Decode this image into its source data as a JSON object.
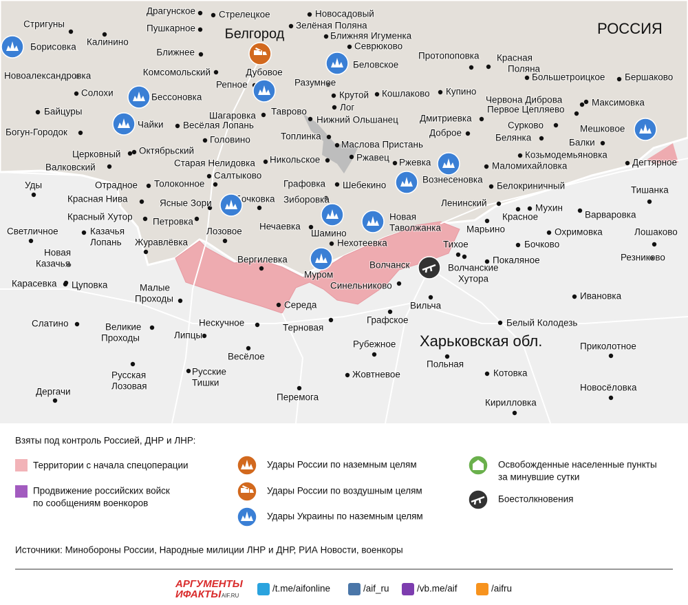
{
  "map": {
    "country": "РОССИЯ",
    "city": "Белгород",
    "region": "Харьковская обл.",
    "places": [
      "Драгунское",
      "Стрелецкое",
      "Новосадовый",
      "Зелёная Поляна",
      "Пушкарное",
      "Ближняя Игуменка",
      "Стригуны",
      "Борисовка",
      "Калинино",
      "Севрюково",
      "Ближнее",
      "Новоалександровка",
      "Комсомольский",
      "Дубовое",
      "Протопоповка",
      [
        "Красная",
        "Поляна"
      ],
      "Большетроицкое",
      "Бершаково",
      "Беловское",
      "Солохи",
      "Бессоновка",
      "Репное",
      "Разумное",
      "Крутой",
      "Кошлаково",
      "Купино",
      "Червона Диброва",
      "Первое Цепляево",
      "Максимовка",
      "Байцуры",
      "Шагаровка",
      "Таврово",
      "Лог",
      "Нижний Ольшанец",
      "Дмитриевка",
      "Чайки",
      "Весёлая Лопань",
      "Сурково",
      "Мешковое",
      "Богун-Городок",
      "Доброе",
      "Головино",
      "Топлинка",
      "Белянка",
      "Балки",
      "Маслова Пристань",
      "Церковный",
      "Октябрьский",
      "Козьмодемьяновка",
      "Дегтярное",
      "Ржавец",
      "Старая Нелидовка",
      "Никольское",
      "Ржевка",
      "Валковский",
      "Маломихайловка",
      "Салтыково",
      "Вознесеновка",
      "Уды",
      "Отрадное",
      "Толоконное",
      "Графовка",
      "Шебекино",
      "Белокриничный",
      "Тишанка",
      "Красная Нива",
      "Ясные Зори",
      "Бочковка",
      "Зиборовка",
      "Ленинский",
      "Мухин",
      "Варваровка",
      "Красный Хутор",
      "Петровка",
      "Нечаевка",
      [
        "Новая",
        "Таволжанка"
      ],
      "Шамино",
      "Марьино",
      "Охримовка",
      "Лошаково",
      "Красное",
      "Светличное",
      [
        "Казачья",
        "Лопань"
      ],
      "Журавлёвка",
      "Лозовое",
      "Нехотеевка",
      "Тихое",
      "Бочково",
      [
        "Новая",
        "Казачья"
      ],
      "Вергилевка",
      "Волчанск",
      [
        "Волчанские",
        "Хутора"
      ],
      "Покаляное",
      "Резниково",
      "Муром",
      "Карасевка",
      "Цуповка",
      "Синельниково",
      [
        "Малые",
        "Проходы"
      ],
      "Середа",
      "Вильча",
      "Ивановка",
      "Графское",
      "Слатино",
      [
        "Великие",
        "Проходы"
      ],
      "Нескучное",
      "Терновая",
      "Белый Колодезь",
      "Липцы",
      "Рубежное",
      "Приколотное",
      "Весёлое",
      "Польная",
      [
        "Русские",
        "Тишки"
      ],
      "Жовтневое",
      "Котовка",
      [
        "Русская",
        "Лозовая"
      ],
      "Новосёловка",
      "Дергачи",
      "Перемога",
      "Кирилловка"
    ]
  },
  "legend": {
    "heading": "Взяты под контроль Россией, ДНР и ЛНР:",
    "items": [
      [
        "Территории с начала спецоперации"
      ],
      [
        "Продвижение российских войск",
        "по сообщениям военкоров"
      ],
      [
        "Удары России по наземным целям"
      ],
      [
        "Удары России по воздушным целям"
      ],
      [
        "Удары Украины по наземным целям"
      ],
      [
        "Освобожденные населенные пункты",
        "за минувшие сутки"
      ],
      [
        "Боестолкновения"
      ]
    ]
  },
  "sources": "Источники: Минобороны России, Народные милиции ЛНР и ДНР, РИА Новости, военкоры",
  "footer": {
    "logo": [
      "АРГУМЕНТЫ",
      "ИФАКТЫ",
      "AIF.RU"
    ],
    "links": [
      "/t.me/aifonline",
      "/aif_ru",
      "/vb.me/aif",
      "/aifru"
    ]
  }
}
